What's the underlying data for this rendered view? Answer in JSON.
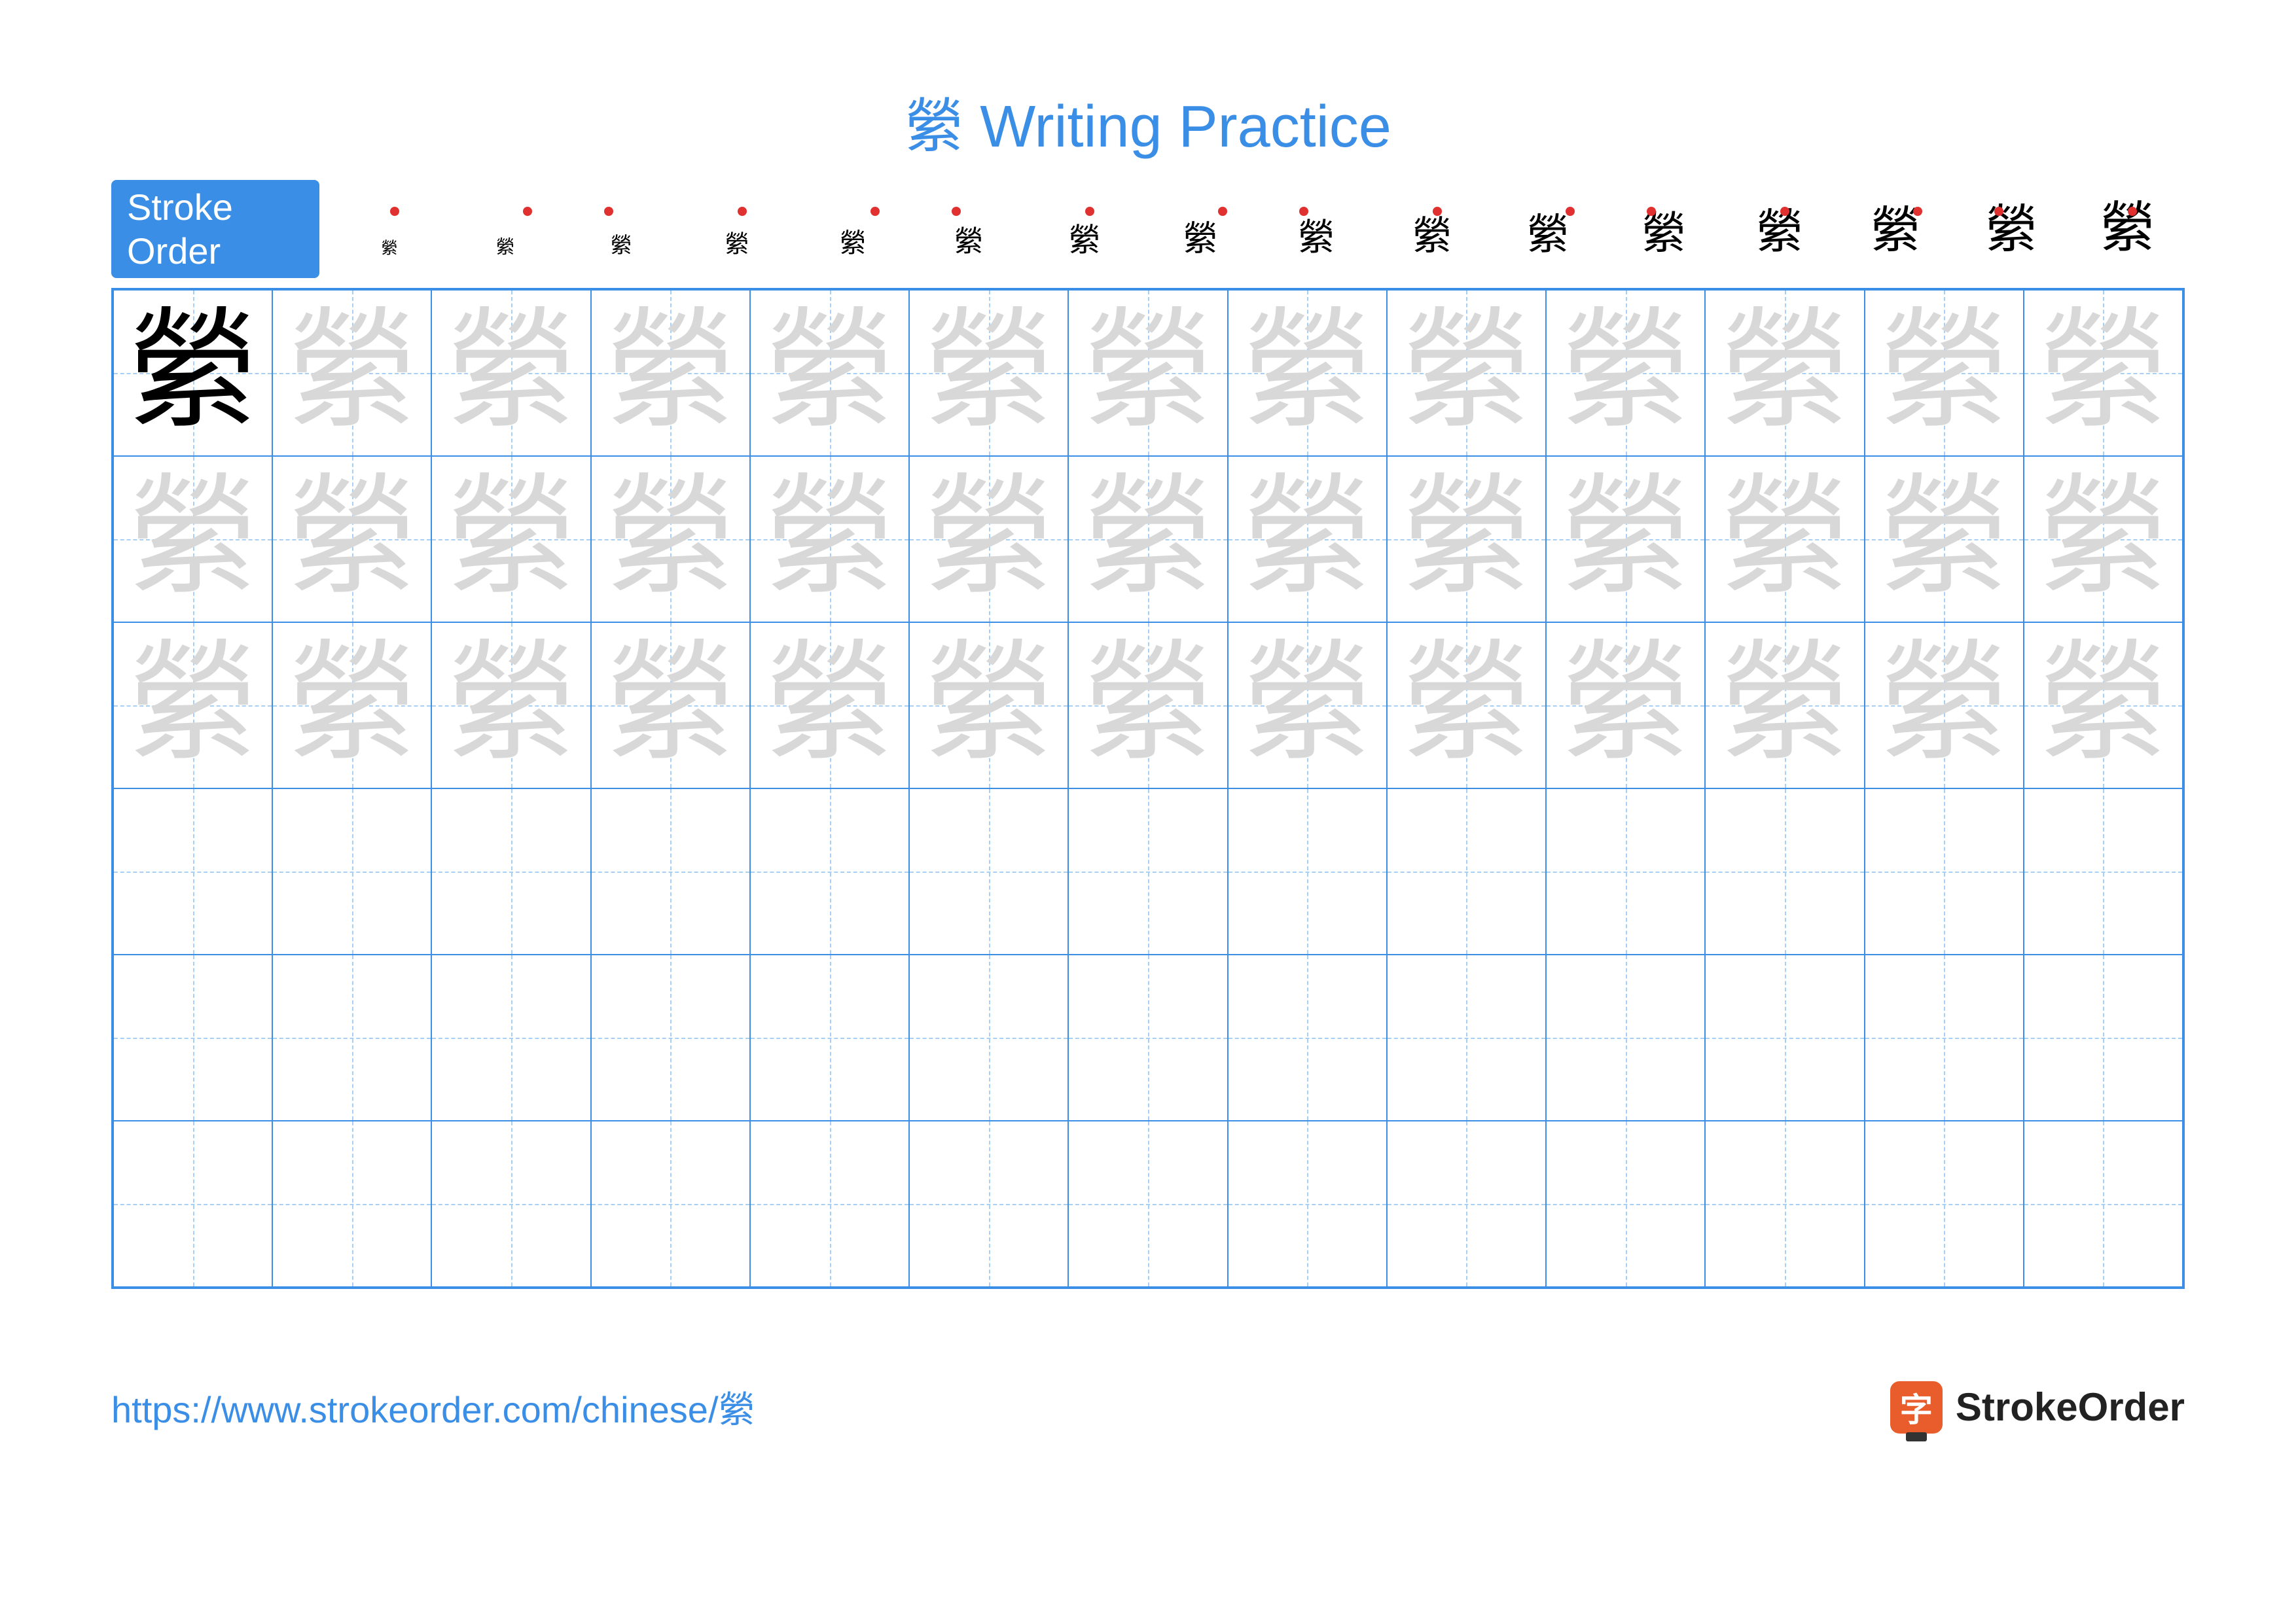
{
  "title_char": "縈",
  "title_suffix": " Writing Practice",
  "title_color": "#3b8ee6",
  "stroke_label": "Stroke Order",
  "stroke_label_bg": "#3b8ee6",
  "stroke_count": 16,
  "stroke_char": "縈",
  "grid": {
    "cols": 13,
    "rows": 6,
    "border_color": "#3b8ee6",
    "guide_color": "#a8d0f5",
    "char": "縈",
    "solid_color": "#000000",
    "ghost_color": "#d8d8d8",
    "layout": [
      [
        "solid",
        "ghost",
        "ghost",
        "ghost",
        "ghost",
        "ghost",
        "ghost",
        "ghost",
        "ghost",
        "ghost",
        "ghost",
        "ghost",
        "ghost"
      ],
      [
        "ghost",
        "ghost",
        "ghost",
        "ghost",
        "ghost",
        "ghost",
        "ghost",
        "ghost",
        "ghost",
        "ghost",
        "ghost",
        "ghost",
        "ghost"
      ],
      [
        "ghost",
        "ghost",
        "ghost",
        "ghost",
        "ghost",
        "ghost",
        "ghost",
        "ghost",
        "ghost",
        "ghost",
        "ghost",
        "ghost",
        "ghost"
      ],
      [
        "empty",
        "empty",
        "empty",
        "empty",
        "empty",
        "empty",
        "empty",
        "empty",
        "empty",
        "empty",
        "empty",
        "empty",
        "empty"
      ],
      [
        "empty",
        "empty",
        "empty",
        "empty",
        "empty",
        "empty",
        "empty",
        "empty",
        "empty",
        "empty",
        "empty",
        "empty",
        "empty"
      ],
      [
        "empty",
        "empty",
        "empty",
        "empty",
        "empty",
        "empty",
        "empty",
        "empty",
        "empty",
        "empty",
        "empty",
        "empty",
        "empty"
      ]
    ]
  },
  "footer": {
    "url": "https://www.strokeorder.com/chinese/縈",
    "url_color": "#3b8ee6",
    "brand_icon_char": "字",
    "brand_icon_bg": "#e85d2b",
    "brand_text": "StrokeOrder"
  }
}
